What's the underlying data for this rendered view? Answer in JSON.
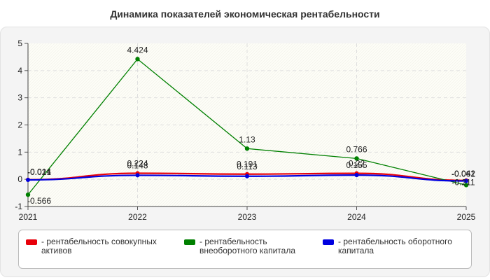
{
  "chart_data": {
    "type": "line",
    "title": "Динамика показателей экономическая рентабельности",
    "xlabel": "",
    "ylabel": "",
    "categories": [
      "2021",
      "2022",
      "2023",
      "2024",
      "2025"
    ],
    "ylim": [
      -1,
      5
    ],
    "yticks": [
      "-1",
      "0",
      "1",
      "2",
      "3",
      "4",
      "5"
    ],
    "grid": true,
    "legend_position": "bottom",
    "series": [
      {
        "name": "рентабельность совокупных активов",
        "color": "#e8000a",
        "values": [
          -0.014,
          0.224,
          0.191,
          0.22,
          -0.042
        ],
        "labels": [
          "-0.014",
          "0.224",
          "0.191",
          "0.22",
          "-0.042"
        ]
      },
      {
        "name": "рентабельность внеоборотного капитала",
        "color": "#008000",
        "values": [
          -0.566,
          4.424,
          1.13,
          0.766,
          -0.211
        ],
        "labels": [
          "-0.566",
          "4.424",
          "1.13",
          "0.766",
          "-0.211"
        ]
      },
      {
        "name": "рентабельность оборотного капитала",
        "color": "#0000e0",
        "values": [
          -0.021,
          0.148,
          0.113,
          0.155,
          -0.061
        ],
        "labels": [
          "-0.021",
          "0.148",
          "0.113",
          "0.155",
          "-0.061"
        ]
      }
    ]
  }
}
